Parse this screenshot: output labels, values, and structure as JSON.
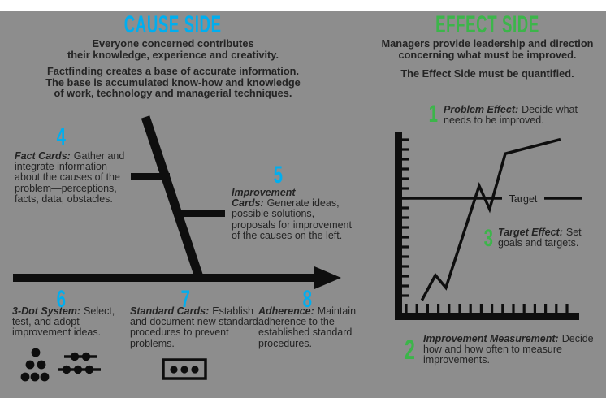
{
  "colors": {
    "page_background": "#ffffff",
    "panel_background": "#8d8d8d",
    "cause_accent": "#00aeef",
    "effect_accent": "#3cb54a",
    "ink_text": "#242424",
    "line_black": "#0e0e0e"
  },
  "cause": {
    "title": "CAUSE SIDE",
    "intro1_lines": [
      "Everyone concerned contributes",
      "their knowledge, experience and creativity."
    ],
    "intro2_lines": [
      "Factfinding creates a base of accurate information.",
      "The base is accumulated know-how and knowledge",
      "of work, technology and managerial techniques."
    ],
    "items": [
      {
        "num": "4",
        "label": "Fact Cards:",
        "text": "Gather and integrate information about the causes of the problem—perceptions, facts, data, obstacles."
      },
      {
        "num": "5",
        "label": "Improvement Cards:",
        "text": "Generate ideas, possible solutions, proposals for improvement of the causes on the left."
      },
      {
        "num": "6",
        "label": "3-Dot System:",
        "text": "Select, test, and adopt improvement ideas."
      },
      {
        "num": "7",
        "label": "Standard Cards:",
        "text": "Establish and document new standard procedures to prevent problems."
      },
      {
        "num": "8",
        "label": "Adherence:",
        "text": "Maintain adherence to the established standard procedures."
      }
    ]
  },
  "effect": {
    "title": "EFFECT SIDE",
    "intro1_lines": [
      "Managers provide leadership and direction",
      "concerning what must be improved."
    ],
    "intro2_lines": [
      "The Effect Side must be quantified."
    ],
    "items": [
      {
        "num": "1",
        "label": "Problem Effect:",
        "text": "Decide what needs to be improved."
      },
      {
        "num": "3",
        "label": "Target Effect:",
        "text": "Set goals and targets."
      },
      {
        "num": "2",
        "label": "Improvement Measurement:",
        "text": "Decide how and how often to measure improvements."
      }
    ]
  },
  "chart_data": {
    "type": "line",
    "title": "",
    "xlabel": "",
    "ylabel": "",
    "x": [
      1.9,
      3.2,
      4.2,
      7.4,
      8.4,
      9.9,
      15.2
    ],
    "y": [
      0.7,
      2.1,
      1.4,
      7.1,
      5.8,
      8.9,
      9.7
    ],
    "xlim": [
      0,
      17
    ],
    "ylim": [
      0,
      10
    ],
    "x_tick_count": 16,
    "y_tick_count": 17,
    "grid": false,
    "axis_tick_labels_visible": false,
    "target": {
      "value": 6.4,
      "label": "Target"
    }
  }
}
